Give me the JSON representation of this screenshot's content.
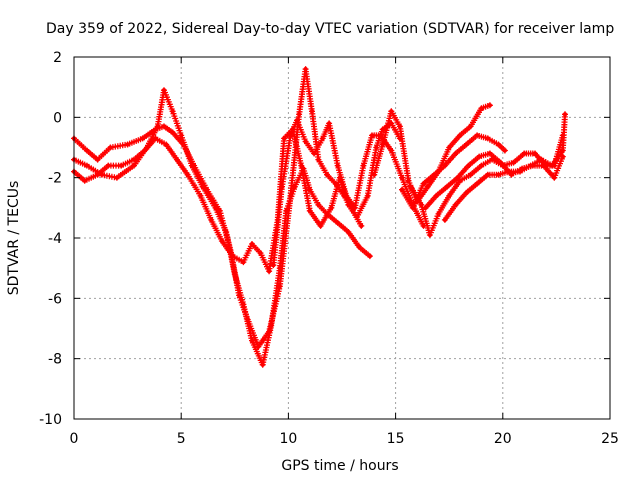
{
  "chart_data": {
    "type": "scatter",
    "title": "Day 359 of 2022, Sidereal Day-to-day VTEC variation (SDTVAR) for receiver lamp",
    "xlabel": "GPS time / hours",
    "ylabel": "SDTVAR / TECUs",
    "xlim": [
      0,
      25
    ],
    "ylim": [
      -10,
      2
    ],
    "xticks": [
      0,
      5,
      10,
      15,
      20,
      25
    ],
    "yticks": [
      -10,
      -8,
      -6,
      -4,
      -2,
      0,
      2
    ],
    "grid": true,
    "marker": "plus",
    "color": "#ff0000",
    "series": [
      {
        "name": "satellite track 1",
        "points": [
          [
            0.0,
            -0.7
          ],
          [
            0.6,
            -1.1
          ],
          [
            1.1,
            -1.4
          ],
          [
            1.7,
            -1.0
          ],
          [
            2.5,
            -0.9
          ],
          [
            3.2,
            -0.7
          ],
          [
            3.8,
            -0.4
          ],
          [
            4.2,
            -0.3
          ],
          [
            4.6,
            -0.5
          ],
          [
            5.1,
            -0.9
          ],
          [
            5.6,
            -1.6
          ],
          [
            6.2,
            -2.4
          ],
          [
            6.8,
            -3.1
          ],
          [
            7.3,
            -4.4
          ],
          [
            7.7,
            -5.9
          ],
          [
            8.1,
            -6.7
          ],
          [
            8.6,
            -7.6
          ],
          [
            9.1,
            -7.1
          ],
          [
            9.6,
            -5.6
          ],
          [
            10.1,
            -2.6
          ],
          [
            10.5,
            0.1
          ],
          [
            10.8,
            1.6
          ],
          [
            11.1,
            0.2
          ],
          [
            11.4,
            -1.4
          ],
          [
            11.8,
            -1.9
          ],
          [
            12.2,
            -2.2
          ],
          [
            12.6,
            -2.6
          ],
          [
            13.0,
            -3.1
          ],
          [
            13.4,
            -3.6
          ]
        ]
      },
      {
        "name": "satellite track 2",
        "points": [
          [
            0.0,
            -1.4
          ],
          [
            0.6,
            -1.6
          ],
          [
            1.3,
            -1.9
          ],
          [
            2.0,
            -2.0
          ],
          [
            2.8,
            -1.6
          ],
          [
            3.4,
            -1.0
          ],
          [
            3.9,
            -0.3
          ],
          [
            4.2,
            0.9
          ],
          [
            4.6,
            0.2
          ],
          [
            5.0,
            -0.6
          ],
          [
            5.5,
            -1.6
          ],
          [
            6.0,
            -2.3
          ],
          [
            6.6,
            -3.0
          ],
          [
            7.1,
            -3.8
          ],
          [
            7.5,
            -5.2
          ],
          [
            7.9,
            -6.2
          ],
          [
            8.3,
            -7.4
          ],
          [
            8.8,
            -8.2
          ],
          [
            9.2,
            -6.9
          ],
          [
            9.6,
            -5.0
          ],
          [
            9.9,
            -3.1
          ],
          [
            10.3,
            -2.3
          ],
          [
            10.7,
            -1.7
          ],
          [
            11.0,
            -2.4
          ],
          [
            11.4,
            -2.9
          ],
          [
            11.8,
            -3.2
          ],
          [
            12.3,
            -3.5
          ],
          [
            12.8,
            -3.8
          ],
          [
            13.3,
            -4.3
          ],
          [
            13.8,
            -4.6
          ]
        ]
      },
      {
        "name": "satellite track 3",
        "points": [
          [
            0.0,
            -1.8
          ],
          [
            0.5,
            -2.1
          ],
          [
            1.1,
            -1.9
          ],
          [
            1.6,
            -1.6
          ],
          [
            2.2,
            -1.6
          ],
          [
            2.8,
            -1.4
          ],
          [
            3.3,
            -1.1
          ],
          [
            3.8,
            -0.7
          ],
          [
            4.3,
            -0.9
          ],
          [
            4.8,
            -1.4
          ],
          [
            5.3,
            -1.9
          ],
          [
            5.9,
            -2.6
          ],
          [
            6.4,
            -3.4
          ],
          [
            6.9,
            -4.1
          ],
          [
            7.4,
            -4.6
          ],
          [
            7.9,
            -4.8
          ],
          [
            8.3,
            -4.2
          ],
          [
            8.7,
            -4.5
          ],
          [
            9.1,
            -5.1
          ],
          [
            9.5,
            -3.4
          ],
          [
            9.8,
            -0.7
          ],
          [
            10.2,
            -0.4
          ],
          [
            10.6,
            -1.6
          ],
          [
            11.0,
            -3.1
          ],
          [
            11.5,
            -3.6
          ],
          [
            12.0,
            -3.0
          ],
          [
            12.4,
            -2.0
          ],
          [
            12.8,
            -2.9
          ],
          [
            13.2,
            -3.3
          ],
          [
            13.7,
            -2.6
          ],
          [
            14.1,
            -1.0
          ],
          [
            14.4,
            -0.4
          ],
          [
            14.8,
            -0.2
          ],
          [
            15.2,
            -0.7
          ]
        ]
      },
      {
        "name": "satellite track 4",
        "points": [
          [
            9.3,
            -4.9
          ],
          [
            9.7,
            -2.3
          ],
          [
            10.1,
            -0.6
          ],
          [
            10.4,
            -0.1
          ],
          [
            10.8,
            -0.8
          ],
          [
            11.2,
            -1.2
          ],
          [
            11.6,
            -0.7
          ],
          [
            11.9,
            -0.2
          ],
          [
            12.3,
            -1.6
          ],
          [
            12.7,
            -2.6
          ],
          [
            13.1,
            -3.0
          ],
          [
            13.5,
            -1.6
          ],
          [
            13.9,
            -0.6
          ],
          [
            14.3,
            -0.6
          ],
          [
            14.8,
            -1.1
          ],
          [
            15.3,
            -2.0
          ],
          [
            15.8,
            -2.9
          ],
          [
            16.3,
            -3.6
          ]
        ]
      },
      {
        "name": "satellite track 5",
        "points": [
          [
            14.0,
            -1.9
          ],
          [
            14.4,
            -0.9
          ],
          [
            14.8,
            0.2
          ],
          [
            15.2,
            -0.3
          ],
          [
            15.6,
            -2.1
          ],
          [
            16.0,
            -2.8
          ],
          [
            16.5,
            -2.3
          ],
          [
            17.0,
            -1.8
          ],
          [
            17.5,
            -1.0
          ],
          [
            18.0,
            -0.6
          ],
          [
            18.5,
            -0.3
          ],
          [
            19.0,
            0.3
          ],
          [
            19.4,
            0.4
          ]
        ]
      },
      {
        "name": "satellite track 6",
        "points": [
          [
            15.3,
            -2.4
          ],
          [
            15.8,
            -3.0
          ],
          [
            16.3,
            -2.2
          ],
          [
            16.8,
            -1.9
          ],
          [
            17.3,
            -1.6
          ],
          [
            17.8,
            -1.2
          ],
          [
            18.3,
            -0.9
          ],
          [
            18.8,
            -0.6
          ],
          [
            19.3,
            -0.7
          ],
          [
            19.8,
            -0.9
          ],
          [
            20.1,
            -1.1
          ]
        ]
      },
      {
        "name": "satellite track 7",
        "points": [
          [
            15.7,
            -2.3
          ],
          [
            16.2,
            -2.9
          ],
          [
            16.6,
            -3.9
          ],
          [
            17.0,
            -3.2
          ],
          [
            17.5,
            -2.6
          ],
          [
            18.0,
            -2.1
          ],
          [
            18.5,
            -1.9
          ],
          [
            19.0,
            -1.6
          ],
          [
            19.5,
            -1.4
          ],
          [
            20.0,
            -1.6
          ],
          [
            20.5,
            -1.5
          ],
          [
            21.0,
            -1.2
          ],
          [
            21.5,
            -1.2
          ],
          [
            22.0,
            -1.6
          ],
          [
            22.4,
            -1.6
          ],
          [
            22.8,
            -0.6
          ]
        ]
      },
      {
        "name": "satellite track 8",
        "points": [
          [
            16.4,
            -3.0
          ],
          [
            16.9,
            -2.6
          ],
          [
            17.4,
            -2.3
          ],
          [
            17.9,
            -2.0
          ],
          [
            18.4,
            -1.6
          ],
          [
            18.9,
            -1.3
          ],
          [
            19.4,
            -1.2
          ],
          [
            19.9,
            -1.5
          ],
          [
            20.4,
            -1.9
          ],
          [
            20.9,
            -1.7
          ],
          [
            21.4,
            -1.6
          ],
          [
            21.9,
            -1.6
          ],
          [
            22.4,
            -2.0
          ],
          [
            22.8,
            -1.3
          ]
        ]
      },
      {
        "name": "satellite track 9",
        "points": [
          [
            17.3,
            -3.4
          ],
          [
            17.8,
            -2.9
          ],
          [
            18.3,
            -2.5
          ],
          [
            18.8,
            -2.2
          ],
          [
            19.3,
            -1.9
          ],
          [
            19.8,
            -1.9
          ],
          [
            20.3,
            -1.8
          ],
          [
            20.8,
            -1.8
          ],
          [
            21.3,
            -1.6
          ],
          [
            21.8,
            -1.4
          ],
          [
            22.3,
            -1.6
          ],
          [
            22.8,
            -1.1
          ],
          [
            22.9,
            0.1
          ]
        ]
      }
    ]
  }
}
